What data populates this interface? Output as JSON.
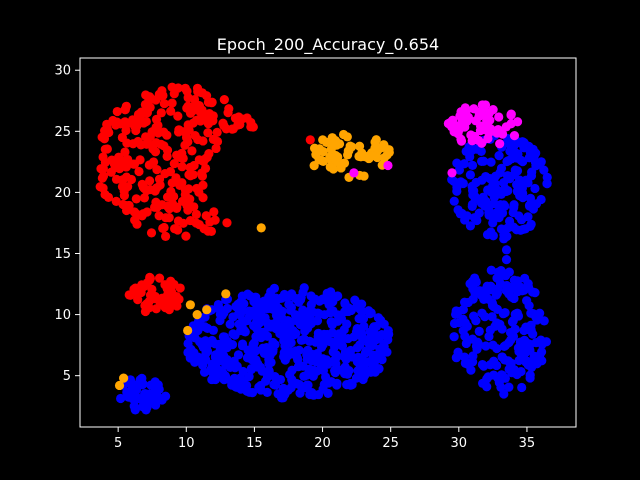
{
  "chart_data": {
    "type": "scatter",
    "title": "Epoch_200_Accuracy_0.654",
    "xlabel": "",
    "ylabel": "",
    "xlim": [
      2.2,
      38.6
    ],
    "ylim": [
      0.8,
      31.0
    ],
    "xticks": [
      5,
      10,
      15,
      20,
      25,
      30,
      35
    ],
    "yticks": [
      5,
      10,
      15,
      20,
      25,
      30
    ],
    "background": "#000000",
    "foreground": "#ffffff",
    "clusters": [
      {
        "name": "red-crescent",
        "color": "#ff0000",
        "shape": "crescent",
        "center": [
          9.5,
          22.5
        ],
        "radius": 6.2,
        "count": 280
      },
      {
        "name": "red-small-blob",
        "color": "#ff0000",
        "shape": "ellipse",
        "center": [
          7.8,
          11.6
        ],
        "rx": 2.0,
        "ry": 1.5,
        "count": 55
      },
      {
        "name": "blue-large-ellipse",
        "color": "#0000ff",
        "shape": "ellipse",
        "center": [
          17.5,
          7.7
        ],
        "rx": 7.5,
        "ry": 4.6,
        "count": 520
      },
      {
        "name": "blue-small-blob",
        "color": "#0000ff",
        "shape": "ellipse",
        "center": [
          6.9,
          3.5
        ],
        "rx": 1.8,
        "ry": 1.4,
        "count": 50
      },
      {
        "name": "orange-blob",
        "color": "#ffa500",
        "shape": "ellipse",
        "center": [
          22.0,
          23.0
        ],
        "rx": 3.0,
        "ry": 1.8,
        "count": 60
      },
      {
        "name": "blue-right-lower",
        "color": "#0000ff",
        "shape": "ellipse",
        "center": [
          33.0,
          8.6
        ],
        "rx": 3.5,
        "ry": 5.2,
        "count": 190
      },
      {
        "name": "blue-right-upper",
        "color": "#0000ff",
        "shape": "ellipse",
        "center": [
          33.0,
          20.5
        ],
        "rx": 3.6,
        "ry": 4.2,
        "count": 170
      },
      {
        "name": "magenta-top",
        "color": "#ff00ff",
        "shape": "ellipse",
        "center": [
          31.8,
          25.5
        ],
        "rx": 2.7,
        "ry": 1.7,
        "count": 60
      }
    ],
    "extra_points": [
      {
        "x": 15.5,
        "y": 17.1,
        "color": "#ffa500"
      },
      {
        "x": 10.1,
        "y": 8.7,
        "color": "#ffa500"
      },
      {
        "x": 10.3,
        "y": 10.8,
        "color": "#ffa500"
      },
      {
        "x": 10.8,
        "y": 10.0,
        "color": "#ffa500"
      },
      {
        "x": 11.5,
        "y": 10.4,
        "color": "#ffa500"
      },
      {
        "x": 12.9,
        "y": 11.7,
        "color": "#ffa500"
      },
      {
        "x": 5.4,
        "y": 4.8,
        "color": "#ffa500"
      },
      {
        "x": 5.1,
        "y": 4.2,
        "color": "#ffa500"
      },
      {
        "x": 19.1,
        "y": 24.3,
        "color": "#ff0000"
      },
      {
        "x": 22.3,
        "y": 21.6,
        "color": "#ff00ff"
      },
      {
        "x": 24.8,
        "y": 22.2,
        "color": "#ff00ff"
      },
      {
        "x": 29.5,
        "y": 21.6,
        "color": "#ff00ff"
      },
      {
        "x": 33.5,
        "y": 14.5,
        "color": "#0000ff"
      },
      {
        "x": 33.5,
        "y": 15.3,
        "color": "#0000ff"
      },
      {
        "x": 33.3,
        "y": 16.2,
        "color": "#0000ff"
      },
      {
        "x": 33.1,
        "y": 13.6,
        "color": "#0000ff"
      }
    ]
  }
}
